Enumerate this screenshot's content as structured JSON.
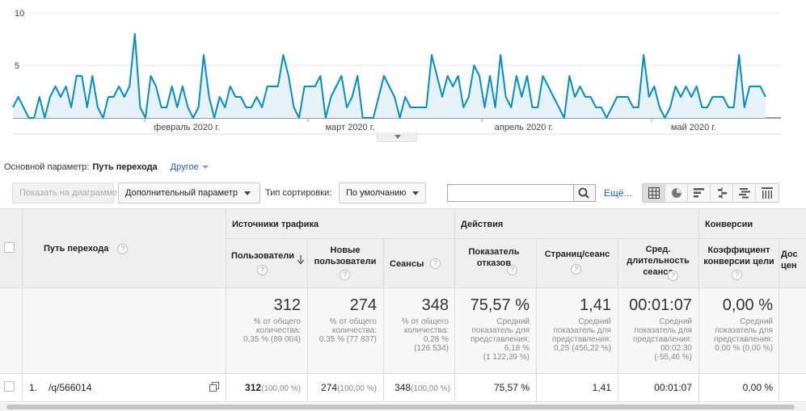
{
  "chart_data": {
    "type": "area",
    "title": "",
    "ylim": [
      0,
      10
    ],
    "yticks": [
      5,
      10
    ],
    "xlabels": [
      "февраль 2020 г.",
      "март 2020 г.",
      "апрель 2020 г.",
      "май 2020 г."
    ],
    "series": [
      {
        "color": "#058dc7",
        "values": [
          1,
          2,
          1,
          0,
          0,
          2,
          0,
          2,
          3,
          2,
          3,
          1,
          4,
          4,
          1,
          4,
          1,
          0,
          2,
          2,
          3,
          2,
          3,
          8,
          1,
          0,
          4,
          3,
          1,
          1,
          3,
          1,
          3,
          1,
          0,
          1,
          6,
          2,
          0,
          2,
          1,
          3,
          2,
          2,
          1,
          1,
          2,
          1,
          3,
          3,
          3,
          6,
          4,
          1,
          0,
          3,
          3,
          3,
          4,
          0,
          2,
          3,
          4,
          1,
          2,
          4,
          0,
          0,
          0,
          2,
          4,
          3,
          2,
          0,
          2,
          1,
          1,
          1,
          1,
          6,
          4,
          2,
          4,
          3,
          4,
          1,
          2,
          5,
          4,
          1,
          4,
          1,
          6,
          2,
          1,
          4,
          2,
          4,
          1,
          1,
          4,
          3,
          2,
          1,
          0,
          4,
          2,
          3,
          2,
          2,
          1,
          1,
          0,
          1,
          2,
          2,
          2,
          1,
          1,
          6,
          2,
          3,
          1,
          0,
          1,
          3,
          2,
          3,
          2,
          3,
          1,
          1,
          2,
          2,
          2,
          1,
          1,
          6,
          1,
          3,
          3,
          3,
          2
        ]
      }
    ]
  },
  "dimension": {
    "label": "Основной параметр:",
    "current": "Путь перехода",
    "other": "Другое"
  },
  "toolbar": {
    "chart_btn": "Показать на диаграмме",
    "secondary_dim": "Дополнительный параметр",
    "sort_label": "Тип сортировки:",
    "sort_value": "По умолчанию",
    "search_value": "",
    "more": "Ещё..."
  },
  "table": {
    "groups": {
      "traffic": "Источники трафика",
      "actions": "Действия",
      "conversions": "Конверсии"
    },
    "columns": {
      "path": "Путь перехода",
      "users": "Пользователи",
      "new_users": "Новые пользователи",
      "sessions": "Сеансы",
      "bounce": "Показатель отказов",
      "pages": "Страниц/сеанс",
      "duration": "Сред. длительность сеанса",
      "conv": "Коэффициент конверсии цели",
      "partial": "Дос цен"
    },
    "summary": {
      "users": {
        "value": "312",
        "l1": "% от общего",
        "l2": "количества:",
        "l3": "0,35 % (89 004)"
      },
      "new_users": {
        "value": "274",
        "l1": "% от общего",
        "l2": "количества:",
        "l3": "0,35 % (77 837)"
      },
      "sessions": {
        "value": "348",
        "l1": "% от общего",
        "l2": "количества:",
        "l3": "0,28 %",
        "l4": "(126 534)"
      },
      "bounce": {
        "value": "75,57 %",
        "l1": "Средний",
        "l2": "показатель для",
        "l3": "представления:",
        "l4": "6,18 %",
        "l5": "(1 122,39 %)"
      },
      "pages": {
        "value": "1,41",
        "l1": "Средний",
        "l2": "показатель для",
        "l3": "представления:",
        "l4": "0,25 (456,22 %)"
      },
      "duration": {
        "value": "00:01:07",
        "l1": "Средний",
        "l2": "показатель для",
        "l3": "представления:",
        "l4": "00:02:30",
        "l5": "(-55,46 %)"
      },
      "conv": {
        "value": "0,00 %",
        "l1": "Средний",
        "l2": "показатель для",
        "l3": "представления:",
        "l4": "0,00 % (0,00 %)"
      }
    },
    "row": {
      "index": "1.",
      "path": "/q/566014",
      "users": "312",
      "users_pct": "(100,00 %)",
      "new_users": "274",
      "new_users_pct": "(100,00 %)",
      "sessions": "348",
      "sessions_pct": "(100,00 %)",
      "bounce": "75,57 %",
      "pages": "1,41",
      "duration": "00:01:07",
      "conv": "0,00 %"
    }
  }
}
